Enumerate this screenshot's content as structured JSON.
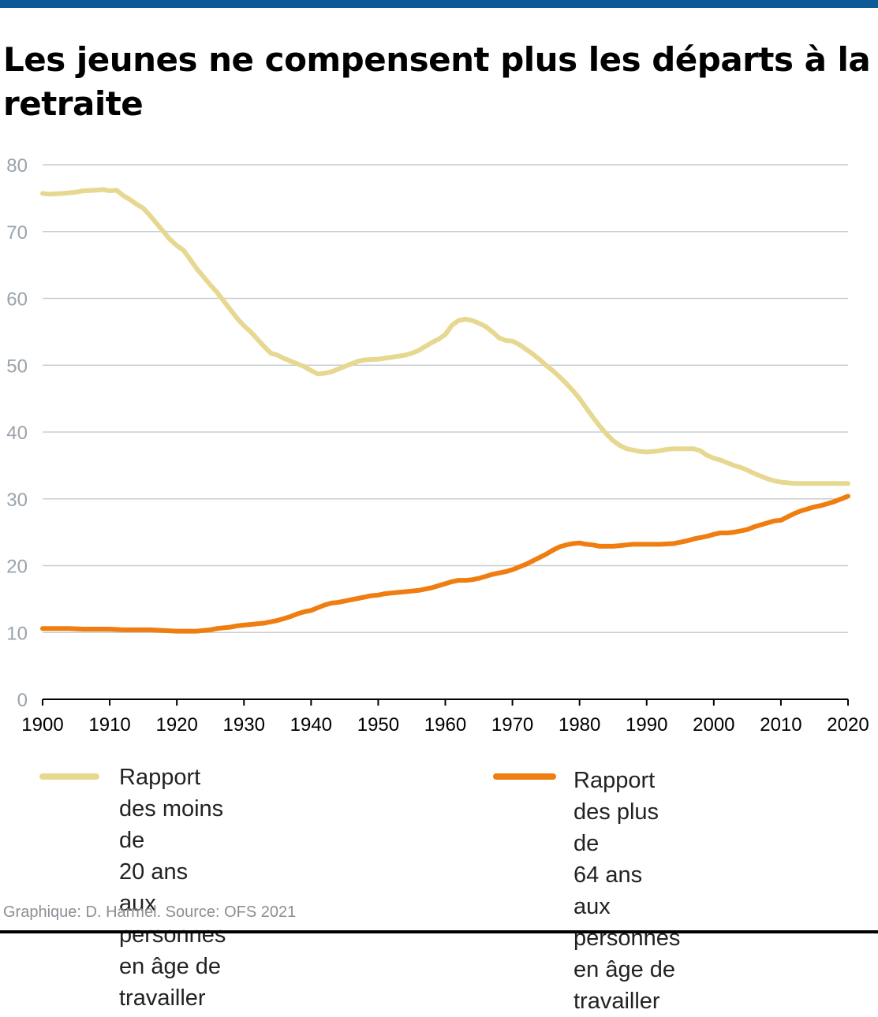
{
  "title": "Les jeunes ne compensent plus les départs à la retraite",
  "source": "Graphique: D. Harmel. Source: OFS 2021",
  "colors": {
    "top_bar": "#0d5a96",
    "series_young": "#e6d891",
    "series_old": "#ef7d10",
    "grid": "#c9ced3"
  },
  "chart_data": {
    "type": "line",
    "title": "Les jeunes ne compensent plus les départs à la retraite",
    "xlabel": "",
    "ylabel": "",
    "xlim": [
      1900,
      2020
    ],
    "ylim": [
      0,
      80
    ],
    "x_ticks": [
      1900,
      1910,
      1920,
      1930,
      1940,
      1950,
      1960,
      1970,
      1980,
      1990,
      2000,
      2010,
      2020
    ],
    "y_ticks": [
      0,
      10,
      20,
      30,
      40,
      50,
      60,
      70,
      80
    ],
    "grid": "horizontal",
    "legend_position": "bottom",
    "series": [
      {
        "name": "Rapport des moins de 20 ans aux personnes en âge de travailler",
        "color": "#e6d891",
        "points": [
          [
            1900,
            75.7
          ],
          [
            1901,
            75.6
          ],
          [
            1903,
            75.7
          ],
          [
            1905,
            75.9
          ],
          [
            1906,
            76.1
          ],
          [
            1908,
            76.2
          ],
          [
            1909,
            76.3
          ],
          [
            1910,
            76.1
          ],
          [
            1911,
            76.2
          ],
          [
            1912,
            75.4
          ],
          [
            1913,
            74.8
          ],
          [
            1914,
            74.1
          ],
          [
            1915,
            73.5
          ],
          [
            1916,
            72.4
          ],
          [
            1917,
            71.2
          ],
          [
            1918,
            70.0
          ],
          [
            1919,
            68.8
          ],
          [
            1920,
            67.9
          ],
          [
            1921,
            67.2
          ],
          [
            1922,
            65.8
          ],
          [
            1923,
            64.4
          ],
          [
            1924,
            63.2
          ],
          [
            1925,
            62.0
          ],
          [
            1926,
            60.9
          ],
          [
            1927,
            59.6
          ],
          [
            1928,
            58.3
          ],
          [
            1929,
            57.0
          ],
          [
            1930,
            55.9
          ],
          [
            1931,
            55.0
          ],
          [
            1932,
            53.9
          ],
          [
            1933,
            52.8
          ],
          [
            1934,
            51.8
          ],
          [
            1935,
            51.5
          ],
          [
            1936,
            51.0
          ],
          [
            1937,
            50.6
          ],
          [
            1938,
            50.2
          ],
          [
            1939,
            49.8
          ],
          [
            1940,
            49.2
          ],
          [
            1941,
            48.7
          ],
          [
            1942,
            48.8
          ],
          [
            1943,
            49.0
          ],
          [
            1944,
            49.4
          ],
          [
            1945,
            49.8
          ],
          [
            1946,
            50.2
          ],
          [
            1947,
            50.6
          ],
          [
            1948,
            50.8
          ],
          [
            1950,
            50.9
          ],
          [
            1952,
            51.2
          ],
          [
            1954,
            51.5
          ],
          [
            1955,
            51.8
          ],
          [
            1956,
            52.2
          ],
          [
            1957,
            52.8
          ],
          [
            1958,
            53.4
          ],
          [
            1959,
            53.9
          ],
          [
            1960,
            54.6
          ],
          [
            1961,
            56.0
          ],
          [
            1962,
            56.7
          ],
          [
            1963,
            56.9
          ],
          [
            1964,
            56.7
          ],
          [
            1965,
            56.3
          ],
          [
            1966,
            55.8
          ],
          [
            1967,
            55.0
          ],
          [
            1968,
            54.1
          ],
          [
            1969,
            53.7
          ],
          [
            1970,
            53.6
          ],
          [
            1971,
            53.1
          ],
          [
            1972,
            52.4
          ],
          [
            1973,
            51.7
          ],
          [
            1974,
            50.9
          ],
          [
            1975,
            50.0
          ],
          [
            1976,
            49.2
          ],
          [
            1977,
            48.3
          ],
          [
            1978,
            47.3
          ],
          [
            1979,
            46.2
          ],
          [
            1980,
            45.0
          ],
          [
            1981,
            43.6
          ],
          [
            1982,
            42.2
          ],
          [
            1983,
            40.9
          ],
          [
            1984,
            39.7
          ],
          [
            1985,
            38.7
          ],
          [
            1986,
            38.0
          ],
          [
            1987,
            37.5
          ],
          [
            1988,
            37.3
          ],
          [
            1989,
            37.1
          ],
          [
            1990,
            37.0
          ],
          [
            1991,
            37.1
          ],
          [
            1992,
            37.2
          ],
          [
            1993,
            37.4
          ],
          [
            1994,
            37.5
          ],
          [
            1996,
            37.5
          ],
          [
            1997,
            37.5
          ],
          [
            1998,
            37.2
          ],
          [
            1999,
            36.5
          ],
          [
            2000,
            36.1
          ],
          [
            2001,
            35.8
          ],
          [
            2002,
            35.4
          ],
          [
            2003,
            35.0
          ],
          [
            2004,
            34.7
          ],
          [
            2005,
            34.3
          ],
          [
            2006,
            33.8
          ],
          [
            2007,
            33.4
          ],
          [
            2008,
            33.0
          ],
          [
            2009,
            32.7
          ],
          [
            2010,
            32.5
          ],
          [
            2011,
            32.4
          ],
          [
            2012,
            32.3
          ],
          [
            2014,
            32.3
          ],
          [
            2016,
            32.3
          ],
          [
            2020,
            32.3
          ]
        ]
      },
      {
        "name": "Rapport des plus de 64 ans aux personnes en âge de travailler",
        "color": "#ef7d10",
        "points": [
          [
            1900,
            10.6
          ],
          [
            1902,
            10.6
          ],
          [
            1904,
            10.6
          ],
          [
            1906,
            10.5
          ],
          [
            1908,
            10.5
          ],
          [
            1910,
            10.5
          ],
          [
            1912,
            10.4
          ],
          [
            1914,
            10.4
          ],
          [
            1916,
            10.4
          ],
          [
            1918,
            10.3
          ],
          [
            1920,
            10.2
          ],
          [
            1922,
            10.2
          ],
          [
            1923,
            10.2
          ],
          [
            1924,
            10.3
          ],
          [
            1925,
            10.4
          ],
          [
            1926,
            10.6
          ],
          [
            1927,
            10.7
          ],
          [
            1928,
            10.8
          ],
          [
            1929,
            11.0
          ],
          [
            1930,
            11.1
          ],
          [
            1931,
            11.2
          ],
          [
            1932,
            11.3
          ],
          [
            1933,
            11.4
          ],
          [
            1934,
            11.6
          ],
          [
            1935,
            11.8
          ],
          [
            1936,
            12.1
          ],
          [
            1937,
            12.4
          ],
          [
            1938,
            12.8
          ],
          [
            1939,
            13.1
          ],
          [
            1940,
            13.3
          ],
          [
            1941,
            13.7
          ],
          [
            1942,
            14.1
          ],
          [
            1943,
            14.4
          ],
          [
            1944,
            14.5
          ],
          [
            1945,
            14.7
          ],
          [
            1946,
            14.9
          ],
          [
            1947,
            15.1
          ],
          [
            1948,
            15.3
          ],
          [
            1949,
            15.5
          ],
          [
            1950,
            15.6
          ],
          [
            1951,
            15.8
          ],
          [
            1952,
            15.9
          ],
          [
            1953,
            16.0
          ],
          [
            1954,
            16.1
          ],
          [
            1955,
            16.2
          ],
          [
            1956,
            16.3
          ],
          [
            1957,
            16.5
          ],
          [
            1958,
            16.7
          ],
          [
            1959,
            17.0
          ],
          [
            1960,
            17.3
          ],
          [
            1961,
            17.6
          ],
          [
            1962,
            17.8
          ],
          [
            1963,
            17.8
          ],
          [
            1964,
            17.9
          ],
          [
            1965,
            18.1
          ],
          [
            1966,
            18.4
          ],
          [
            1967,
            18.7
          ],
          [
            1968,
            18.9
          ],
          [
            1969,
            19.1
          ],
          [
            1970,
            19.4
          ],
          [
            1971,
            19.8
          ],
          [
            1972,
            20.2
          ],
          [
            1973,
            20.7
          ],
          [
            1974,
            21.2
          ],
          [
            1975,
            21.7
          ],
          [
            1976,
            22.3
          ],
          [
            1977,
            22.8
          ],
          [
            1978,
            23.1
          ],
          [
            1979,
            23.3
          ],
          [
            1980,
            23.4
          ],
          [
            1981,
            23.2
          ],
          [
            1982,
            23.1
          ],
          [
            1983,
            22.9
          ],
          [
            1985,
            22.9
          ],
          [
            1986,
            23.0
          ],
          [
            1987,
            23.1
          ],
          [
            1988,
            23.2
          ],
          [
            1990,
            23.2
          ],
          [
            1991,
            23.2
          ],
          [
            1992,
            23.2
          ],
          [
            1994,
            23.3
          ],
          [
            1995,
            23.5
          ],
          [
            1996,
            23.7
          ],
          [
            1997,
            24.0
          ],
          [
            1998,
            24.2
          ],
          [
            1999,
            24.4
          ],
          [
            2000,
            24.7
          ],
          [
            2001,
            24.9
          ],
          [
            2002,
            24.9
          ],
          [
            2003,
            25.0
          ],
          [
            2004,
            25.2
          ],
          [
            2005,
            25.4
          ],
          [
            2006,
            25.8
          ],
          [
            2007,
            26.1
          ],
          [
            2008,
            26.4
          ],
          [
            2009,
            26.7
          ],
          [
            2010,
            26.8
          ],
          [
            2011,
            27.3
          ],
          [
            2012,
            27.8
          ],
          [
            2013,
            28.2
          ],
          [
            2014,
            28.5
          ],
          [
            2015,
            28.8
          ],
          [
            2016,
            29.0
          ],
          [
            2017,
            29.3
          ],
          [
            2018,
            29.6
          ],
          [
            2019,
            30.0
          ],
          [
            2020,
            30.4
          ]
        ]
      }
    ]
  },
  "legend": {
    "young_label_lines": [
      "Rapport des moins de",
      "20 ans aux personnes",
      "en âge de travailler"
    ],
    "old_label_lines": [
      "Rapport des plus de",
      "64 ans aux personnes",
      "en âge de travailler"
    ]
  }
}
